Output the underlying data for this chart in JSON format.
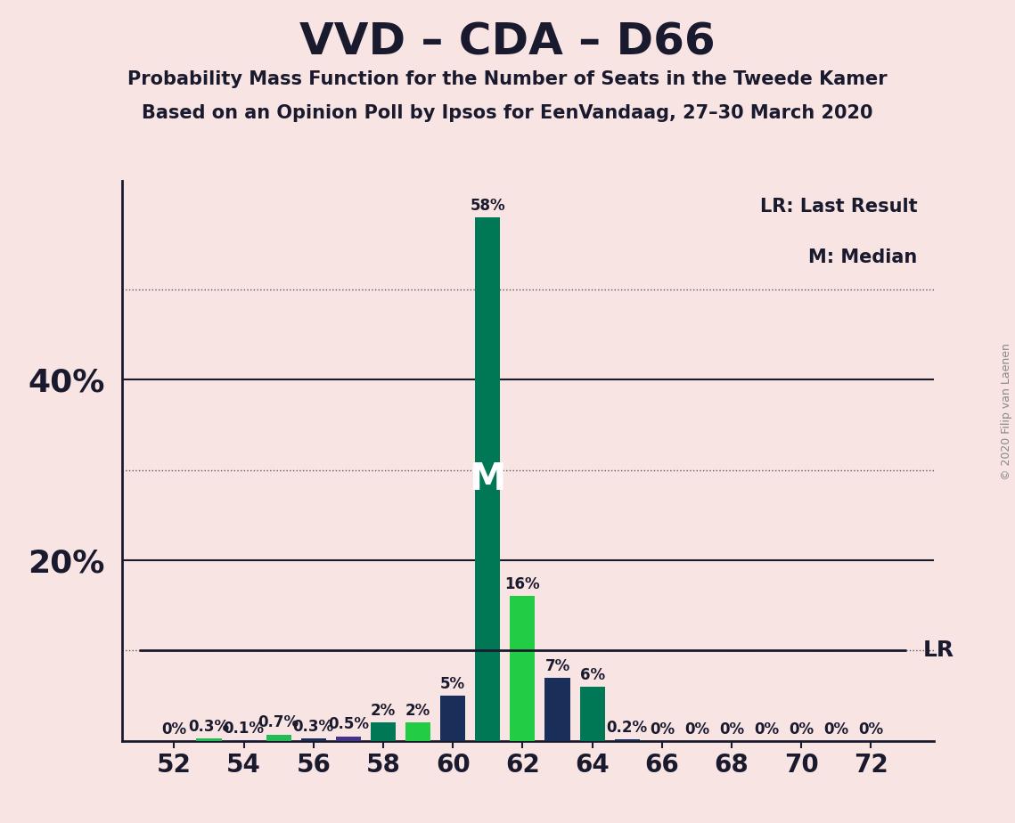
{
  "title": "VVD – CDA – D66",
  "subtitle1": "Probability Mass Function for the Number of Seats in the Tweede Kamer",
  "subtitle2": "Based on an Opinion Poll by Ipsos for EenVandaag, 27–30 March 2020",
  "copyright": "© 2020 Filip van Laenen",
  "background_color": "#f9e4e4",
  "seats": [
    52,
    53,
    54,
    55,
    56,
    57,
    58,
    59,
    60,
    61,
    62,
    63,
    64,
    65,
    66,
    67,
    68,
    69,
    70,
    71,
    72
  ],
  "pmf_values": [
    0.0,
    0.3,
    0.1,
    0.7,
    0.3,
    0.5,
    2.0,
    2.0,
    5.0,
    58.0,
    16.0,
    7.0,
    6.0,
    0.2,
    0.0,
    0.0,
    0.0,
    0.0,
    0.0,
    0.0,
    0.0
  ],
  "bar_colors": [
    "#1a2e5a",
    "#22bb55",
    "#1a2e5a",
    "#22bb55",
    "#1a2e5a",
    "#443388",
    "#007755",
    "#22cc44",
    "#1a2e5a",
    "#007755",
    "#22cc44",
    "#1a2e5a",
    "#007755",
    "#1a2e5a",
    "#1a2e5a",
    "#1a2e5a",
    "#1a2e5a",
    "#1a2e5a",
    "#1a2e5a",
    "#1a2e5a",
    "#1a2e5a"
  ],
  "label_values": [
    "0%",
    "0.3%",
    "0.1%",
    "0.7%",
    "0.3%",
    "0.5%",
    "2%",
    "2%",
    "5%",
    "58%",
    "16%",
    "7%",
    "6%",
    "0.2%",
    "0%",
    "0%",
    "0%",
    "0%",
    "0%",
    "0%",
    "0%"
  ],
  "median_seat": 61,
  "lr_value": 10.0,
  "ylim_max": 62,
  "solid_gridlines": [
    20,
    40
  ],
  "dotted_gridlines": [
    10,
    30,
    50
  ],
  "ytick_labels_shown": {
    "20": "20%",
    "40": "40%"
  },
  "xtick_seats": [
    52,
    54,
    56,
    58,
    60,
    62,
    64,
    66,
    68,
    70,
    72
  ],
  "legend_lr": "LR: Last Result",
  "legend_m": "M: Median",
  "bar_width": 0.72,
  "label_fontsize": 12,
  "title_fontsize": 36,
  "subtitle_fontsize": 15,
  "axis_fontsize": 20,
  "ytick_fontsize": 26
}
